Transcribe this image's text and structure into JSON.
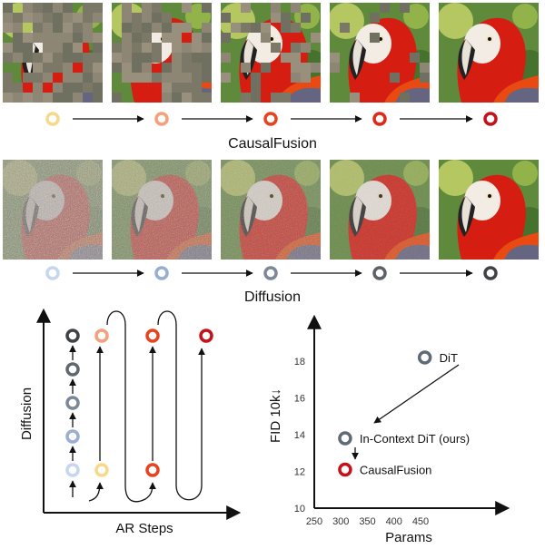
{
  "rows": [
    {
      "label": "CausalFusion",
      "image_subject": "scarlet macaw parrot image, progressively revealed by patches",
      "ring_colors": [
        "#f7d98b",
        "#f5a07a",
        "#e8431f",
        "#e02818",
        "#c4121a"
      ]
    },
    {
      "label": "Diffusion",
      "image_subject": "scarlet macaw parrot image, progressively denoised",
      "ring_colors": [
        "#c7d6ee",
        "#96aed2",
        "#7d8795",
        "#5c6168",
        "#3f4247"
      ]
    }
  ],
  "left_panel": {
    "y_label": "Diffusion",
    "x_label": "AR Steps",
    "column_ring_colors": [
      "#c7d6ee",
      "#9aafd0",
      "#7d8897",
      "#606770",
      "#3e4348"
    ],
    "ar_ring_colors": [
      "#f7d98b",
      "#f5a07a",
      "#e8431f",
      "#c4121a"
    ]
  },
  "chart_data": {
    "type": "scatter",
    "xlabel": "Params",
    "ylabel": "FID 10k↓",
    "xlim": [
      250,
      500
    ],
    "ylim": [
      10,
      19
    ],
    "x_ticks": [
      "250",
      "300",
      "350",
      "400",
      "450"
    ],
    "y_ticks": [
      "10",
      "12",
      "14",
      "16",
      "18"
    ],
    "points": [
      {
        "label": "DiT",
        "x": 458,
        "y": 18.2,
        "color": "#5f6a74"
      },
      {
        "label": "In-Context DiT (ours)",
        "x": 308,
        "y": 13.8,
        "color": "#5f6a74"
      },
      {
        "label": "CausalFusion",
        "x": 308,
        "y": 12.1,
        "color": "#c4121a"
      }
    ]
  }
}
